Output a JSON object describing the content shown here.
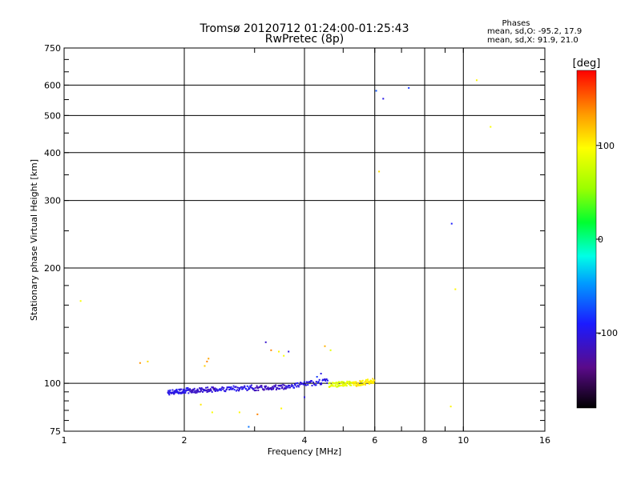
{
  "chart_data": {
    "type": "scatter",
    "title": "Tromsø 20120712 01:24:00-01:25:43",
    "subtitle": "RwPretec (8p)",
    "xlabel": "Frequency [MHz]",
    "ylabel": "Stationary phase Virtual Height [km]",
    "x_scale": "log",
    "y_scale": "log",
    "xlim": [
      1,
      16
    ],
    "ylim": [
      75,
      750
    ],
    "x_ticks": [
      1,
      2,
      4,
      6,
      8,
      10,
      16
    ],
    "y_ticks": [
      75,
      100,
      200,
      300,
      400,
      500,
      600,
      750
    ],
    "grid": true,
    "stats": {
      "heading": "Phases",
      "line1": "mean, sd,O: -95.2, 17.9",
      "line2": "mean, sd,X:  91.9, 21.0"
    },
    "colorbar": {
      "label": "[deg]",
      "min": -180,
      "max": 180,
      "ticks": [
        100,
        0,
        -100
      ],
      "tick_labels": [
        "100",
        "0",
        "-100"
      ]
    },
    "points": [
      [
        1.1,
        164,
        95
      ],
      [
        1.55,
        113,
        135
      ],
      [
        1.62,
        114,
        110
      ],
      [
        2.25,
        111,
        115
      ],
      [
        2.28,
        114,
        140
      ],
      [
        2.3,
        116,
        130
      ],
      [
        2.35,
        84,
        95
      ],
      [
        2.2,
        88,
        105
      ],
      [
        2.75,
        84,
        100
      ],
      [
        3.05,
        83,
        140
      ],
      [
        2.9,
        77,
        -60
      ],
      [
        3.2,
        128,
        -110
      ],
      [
        3.3,
        122,
        140
      ],
      [
        3.45,
        121,
        100
      ],
      [
        3.55,
        118,
        95
      ],
      [
        3.65,
        121,
        -105
      ],
      [
        3.5,
        86,
        100
      ],
      [
        4.5,
        125,
        125
      ],
      [
        4.65,
        122,
        85
      ],
      [
        4.0,
        92,
        -100
      ],
      [
        4.3,
        104,
        -80
      ],
      [
        4.4,
        106,
        -100
      ],
      [
        6.05,
        580,
        -70
      ],
      [
        6.3,
        553,
        -100
      ],
      [
        7.3,
        590,
        -80
      ],
      [
        6.15,
        357,
        110
      ],
      [
        9.35,
        261,
        -90
      ],
      [
        9.55,
        176,
        100
      ],
      [
        9.3,
        87,
        100
      ],
      [
        10.8,
        618,
        100
      ],
      [
        11.7,
        467,
        95
      ]
    ],
    "dense_band": [
      {
        "x_start": 1.82,
        "x_end": 2.05,
        "h_start": 94.5,
        "h_end": 96.0,
        "phase": -100
      },
      {
        "x_start": 2.05,
        "x_end": 2.4,
        "h_start": 95.5,
        "h_end": 96.5,
        "phase": -110
      },
      {
        "x_start": 2.4,
        "x_end": 3.0,
        "h_start": 96.5,
        "h_end": 97.5,
        "phase": -100
      },
      {
        "x_start": 3.0,
        "x_end": 3.6,
        "h_start": 97.0,
        "h_end": 98.0,
        "phase": -115
      },
      {
        "x_start": 3.6,
        "x_end": 4.6,
        "h_start": 98.0,
        "h_end": 101.5,
        "phase": -100
      },
      {
        "x_start": 4.6,
        "x_end": 5.3,
        "h_start": 99.0,
        "h_end": 100.0,
        "phase": 85
      },
      {
        "x_start": 5.3,
        "x_end": 6.0,
        "h_start": 99.5,
        "h_end": 101.5,
        "phase": 105
      }
    ]
  }
}
